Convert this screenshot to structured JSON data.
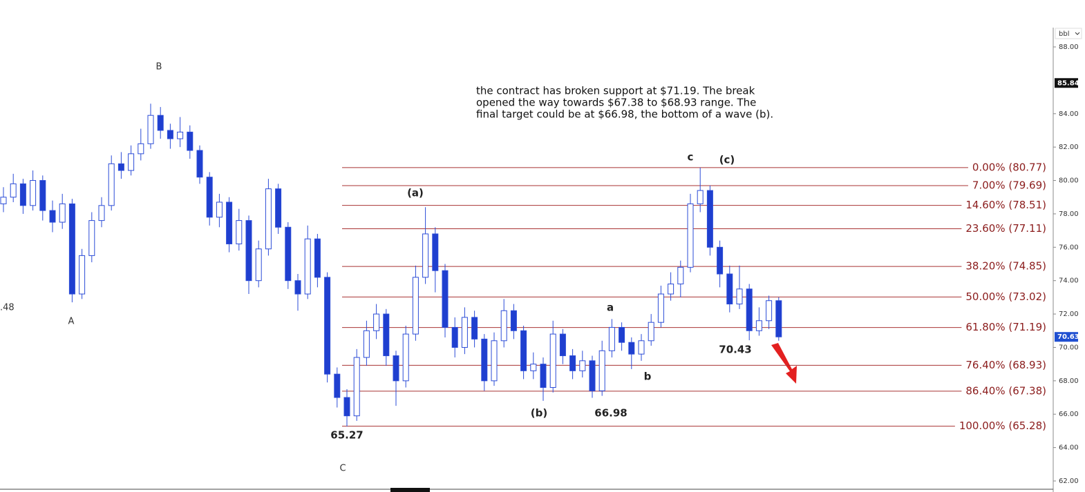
{
  "chart_data": {
    "type": "candlestick",
    "unit": "bbl",
    "note": [
      "the contract has broken support at $71.19. The break",
      "opened the way towards $67.38 to $68.93 range. The",
      "final target could be at $66.98, the bottom of a wave (b)."
    ],
    "ylim": [
      62,
      88.7
    ],
    "yticks": [
      {
        "value": 62,
        "label": "62.00"
      },
      {
        "value": 64,
        "label": "64.00"
      },
      {
        "value": 66,
        "label": "66.00"
      },
      {
        "value": 68,
        "label": "68.00"
      },
      {
        "value": 70,
        "label": "70.00"
      },
      {
        "value": 72,
        "label": "72.00"
      },
      {
        "value": 74,
        "label": "74.00"
      },
      {
        "value": 76,
        "label": "76.00"
      },
      {
        "value": 78,
        "label": "78.00"
      },
      {
        "value": 80,
        "label": "80.00"
      },
      {
        "value": 82,
        "label": "82.00"
      },
      {
        "value": 84,
        "label": "84.00"
      },
      {
        "value": 88,
        "label": "88.00"
      }
    ],
    "price_markers": [
      {
        "value": 85.84,
        "color": "#111111"
      },
      {
        "value": 70.63,
        "color": "#1f4fd1"
      }
    ],
    "up_color": "#ffffff",
    "down_color": "#1f3fcf",
    "edge_color": "#2a4bd7",
    "fib_color": "#a83232",
    "fib_levels": [
      {
        "value": 80.77,
        "label": "0.00% (80.77)"
      },
      {
        "value": 79.69,
        "label": "7.00% (79.69)"
      },
      {
        "value": 78.51,
        "label": "14.60% (78.51)"
      },
      {
        "value": 77.11,
        "label": "23.60% (77.11)"
      },
      {
        "value": 74.85,
        "label": "38.20% (74.85)"
      },
      {
        "value": 73.02,
        "label": "50.00% (73.02)"
      },
      {
        "value": 71.19,
        "label": "61.80% (71.19)"
      },
      {
        "value": 68.93,
        "label": "76.40% (68.93)"
      },
      {
        "value": 67.38,
        "label": "86.40% (67.38)"
      },
      {
        "value": 65.28,
        "label": "100.00% (65.28)"
      }
    ],
    "annotations": [
      "B",
      "A",
      "C",
      ".48",
      "(a)",
      "(b)",
      "66.98",
      "65.27",
      "a",
      "b",
      "c",
      "(c)",
      "70.43"
    ],
    "open": [
      78.6,
      79.0,
      79.8,
      78.5,
      80.0,
      78.2,
      77.5,
      78.6,
      73.2,
      75.5,
      77.6,
      78.5,
      81.0,
      80.6,
      81.6,
      82.2,
      83.9,
      83.0,
      82.5,
      82.9,
      81.8,
      80.2,
      77.8,
      78.7,
      76.2,
      77.6,
      74.0,
      75.9,
      79.5,
      77.2,
      74.0,
      73.2,
      76.5,
      74.2,
      68.4,
      67.0,
      65.9,
      69.4,
      71.0,
      72.0,
      69.5,
      68.0,
      70.8,
      74.2,
      76.8,
      74.6,
      71.2,
      70.0,
      71.8,
      70.5,
      68.0,
      70.4,
      72.2,
      71.0,
      68.6,
      69.0,
      67.6,
      70.8,
      69.5,
      68.6,
      69.2,
      67.4,
      69.8,
      71.2,
      70.3,
      69.6,
      70.4,
      71.5,
      73.2,
      73.8,
      74.8,
      78.6,
      79.4,
      76.0,
      74.4,
      72.6,
      73.5,
      71.0,
      71.6,
      72.8
    ],
    "high": [
      79.6,
      80.4,
      80.1,
      80.6,
      80.3,
      78.8,
      79.2,
      78.9,
      75.9,
      78.1,
      79.0,
      81.5,
      81.7,
      82.1,
      83.1,
      84.6,
      84.4,
      83.4,
      83.8,
      83.3,
      82.1,
      80.5,
      79.2,
      79.0,
      78.3,
      77.9,
      76.4,
      80.1,
      79.8,
      77.5,
      74.4,
      77.3,
      76.8,
      74.5,
      68.8,
      67.5,
      69.9,
      71.6,
      72.6,
      72.3,
      69.8,
      71.3,
      74.9,
      78.4,
      77.2,
      75.0,
      71.8,
      72.4,
      72.2,
      70.8,
      70.9,
      72.9,
      72.6,
      71.3,
      69.7,
      69.4,
      71.6,
      71.1,
      69.9,
      69.8,
      69.5,
      70.4,
      71.7,
      71.5,
      70.6,
      70.8,
      72.0,
      73.7,
      74.5,
      75.2,
      79.2,
      80.77,
      79.7,
      76.4,
      74.9,
      74.9,
      73.8,
      72.4,
      73.1,
      73.0
    ],
    "low": [
      78.1,
      78.7,
      78.0,
      78.2,
      77.6,
      76.9,
      77.1,
      72.7,
      72.9,
      75.1,
      77.2,
      78.2,
      80.1,
      80.3,
      81.2,
      81.9,
      82.5,
      81.9,
      82.0,
      81.3,
      79.8,
      77.3,
      77.2,
      75.7,
      75.8,
      73.2,
      73.6,
      75.5,
      76.8,
      73.5,
      72.2,
      72.9,
      73.6,
      67.9,
      66.4,
      65.27,
      65.6,
      68.9,
      70.5,
      68.9,
      66.5,
      67.6,
      70.4,
      73.8,
      73.3,
      70.6,
      69.4,
      69.6,
      70.0,
      67.4,
      67.7,
      70.0,
      70.5,
      68.1,
      68.1,
      66.8,
      67.3,
      69.0,
      68.1,
      68.2,
      66.98,
      67.1,
      69.4,
      69.8,
      68.7,
      69.2,
      70.1,
      71.2,
      72.8,
      73.0,
      74.5,
      78.1,
      75.5,
      73.6,
      72.1,
      72.3,
      70.43,
      70.7,
      71.1,
      70.4
    ],
    "close": [
      79.0,
      79.8,
      78.5,
      80.0,
      78.2,
      77.5,
      78.6,
      73.2,
      75.5,
      77.6,
      78.5,
      81.0,
      80.6,
      81.6,
      82.2,
      83.9,
      83.0,
      82.5,
      82.9,
      81.8,
      80.2,
      77.8,
      78.7,
      76.2,
      77.6,
      74.0,
      75.9,
      79.5,
      77.2,
      74.0,
      73.2,
      76.5,
      74.2,
      68.4,
      67.0,
      65.9,
      69.4,
      71.0,
      72.0,
      69.5,
      68.0,
      70.8,
      74.2,
      76.8,
      74.6,
      71.2,
      70.0,
      71.8,
      70.5,
      68.0,
      70.4,
      72.2,
      71.0,
      68.6,
      69.0,
      67.6,
      70.8,
      69.5,
      68.6,
      69.2,
      67.4,
      69.8,
      71.2,
      70.3,
      69.6,
      70.4,
      71.5,
      73.2,
      73.8,
      74.8,
      78.6,
      79.4,
      76.0,
      74.4,
      72.6,
      73.5,
      71.0,
      71.6,
      72.8,
      70.63
    ]
  }
}
